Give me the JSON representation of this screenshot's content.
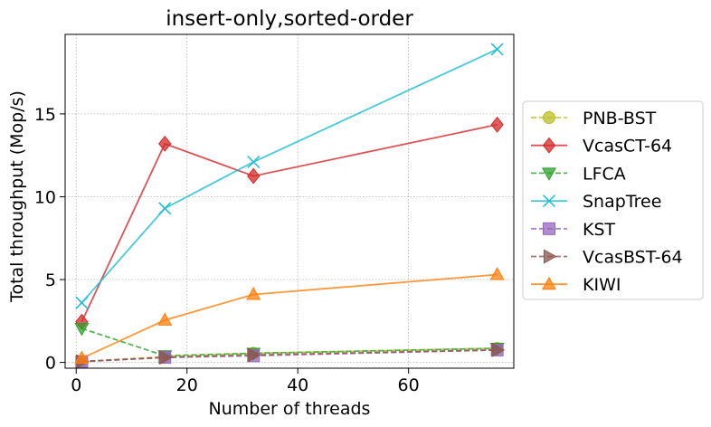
{
  "chart_data": {
    "type": "line",
    "title": "insert-only,sorted-order",
    "xlabel": "Number of threads",
    "ylabel": "Total throughput (Mop/s)",
    "xlim": [
      -2,
      79
    ],
    "ylim": [
      -0.35,
      19.8
    ],
    "xticks": [
      0,
      20,
      40,
      60
    ],
    "yticks": [
      0,
      5,
      10,
      15
    ],
    "grid": true,
    "legend_position": "right-outside",
    "series": [
      {
        "name": "PNB-BST",
        "color": "#bcbd22",
        "linestyle": "dashed",
        "marker": "circle",
        "x": [
          1,
          16,
          32,
          76
        ],
        "y": [
          0.05,
          0.35,
          0.55,
          0.85
        ]
      },
      {
        "name": "VcasCT-64",
        "color": "#d62728",
        "linestyle": "solid",
        "marker": "diamond",
        "x": [
          1,
          16,
          32,
          76
        ],
        "y": [
          2.45,
          13.2,
          11.25,
          14.35
        ]
      },
      {
        "name": "LFCA",
        "color": "#2ca02c",
        "linestyle": "dashed",
        "marker": "triangle-down",
        "x": [
          1,
          16,
          32,
          76
        ],
        "y": [
          2.05,
          0.4,
          0.55,
          0.85
        ]
      },
      {
        "name": "SnapTree",
        "color": "#17becf",
        "linestyle": "solid",
        "marker": "x",
        "x": [
          1,
          16,
          32,
          76
        ],
        "y": [
          3.6,
          9.3,
          12.1,
          18.9
        ]
      },
      {
        "name": "KST",
        "color": "#9467bd",
        "linestyle": "dashed",
        "marker": "square",
        "x": [
          1,
          16,
          32,
          76
        ],
        "y": [
          0.05,
          0.3,
          0.4,
          0.75
        ]
      },
      {
        "name": "VcasBST-64",
        "color": "#8c564b",
        "linestyle": "dashed",
        "marker": "triangle-right",
        "x": [
          1,
          16,
          32,
          76
        ],
        "y": [
          0.05,
          0.3,
          0.45,
          0.75
        ]
      },
      {
        "name": "KIWI",
        "color": "#ff7f0e",
        "linestyle": "solid",
        "marker": "triangle-up",
        "x": [
          1,
          16,
          32,
          76
        ],
        "y": [
          0.25,
          2.55,
          4.1,
          5.3
        ]
      }
    ]
  }
}
